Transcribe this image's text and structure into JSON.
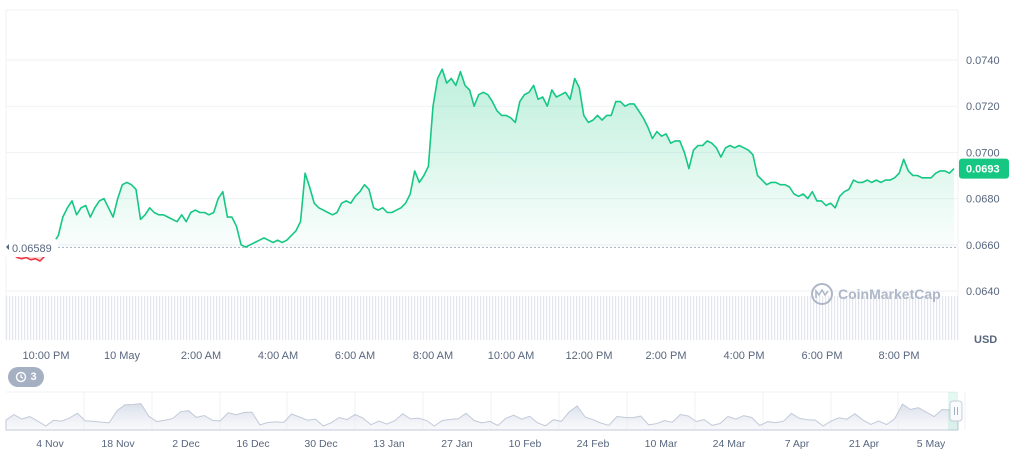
{
  "chart_data": {
    "type": "area",
    "currency_label": "USD",
    "watermark": "CoinMarketCap",
    "y_ticks": [
      "0.0740",
      "0.0720",
      "0.0700",
      "0.0680",
      "0.0660",
      "0.0640"
    ],
    "ylim": [
      0.063,
      0.0753
    ],
    "x_ticks": [
      "10:00 PM",
      "10 May",
      "2:00 AM",
      "4:00 AM",
      "6:00 AM",
      "8:00 AM",
      "10:00 AM",
      "12:00 PM",
      "2:00 PM",
      "4:00 PM",
      "6:00 PM",
      "8:00 PM"
    ],
    "open_price": 0.06589,
    "open_price_label": "0.06589",
    "current_price": 0.0693,
    "current_price_label": "0.0693",
    "colors": {
      "up": "#16c784",
      "down": "#ea3943",
      "badge": "#16c784",
      "neutral": "#a6b0c3"
    },
    "series": [
      {
        "values": [
          0.06589,
          0.0656,
          0.06545,
          0.0654,
          0.06545,
          0.06535,
          0.0654,
          0.0653,
          0.0655,
          0.0662,
          0.0661,
          0.0664,
          0.0672,
          0.0676,
          0.0679,
          0.0673,
          0.0676,
          0.0677,
          0.0672,
          0.0676,
          0.0679,
          0.068,
          0.0676,
          0.0672,
          0.068,
          0.0686,
          0.0687,
          0.0686,
          0.0684,
          0.0671,
          0.0673,
          0.0676,
          0.0674,
          0.0673,
          0.0673,
          0.0672,
          0.0671,
          0.067,
          0.0673,
          0.067,
          0.0674,
          0.0675,
          0.0674,
          0.0674,
          0.0673,
          0.0674,
          0.068,
          0.0683,
          0.0672,
          0.0672,
          0.0668,
          0.066,
          0.0659,
          0.066,
          0.0661,
          0.0662,
          0.0663,
          0.0662,
          0.0661,
          0.0662,
          0.0661,
          0.0662,
          0.0664,
          0.0666,
          0.067,
          0.0691,
          0.0685,
          0.0678,
          0.0676,
          0.0675,
          0.0674,
          0.0673,
          0.0674,
          0.0678,
          0.0679,
          0.0678,
          0.0681,
          0.0683,
          0.0686,
          0.0684,
          0.0676,
          0.0675,
          0.0676,
          0.0674,
          0.0674,
          0.0675,
          0.0676,
          0.0678,
          0.0682,
          0.0692,
          0.0687,
          0.069,
          0.0694,
          0.072,
          0.0732,
          0.0736,
          0.073,
          0.0732,
          0.0729,
          0.0735,
          0.0729,
          0.0727,
          0.072,
          0.0725,
          0.0726,
          0.0725,
          0.0722,
          0.0718,
          0.0716,
          0.0716,
          0.0715,
          0.0713,
          0.0722,
          0.0725,
          0.0726,
          0.0729,
          0.0723,
          0.0724,
          0.072,
          0.0727,
          0.0724,
          0.0725,
          0.0726,
          0.0723,
          0.0732,
          0.0728,
          0.0716,
          0.0713,
          0.0714,
          0.0716,
          0.0714,
          0.0716,
          0.0716,
          0.0722,
          0.0722,
          0.072,
          0.0721,
          0.0721,
          0.0718,
          0.0715,
          0.0711,
          0.0706,
          0.0709,
          0.0707,
          0.0708,
          0.0704,
          0.0705,
          0.0705,
          0.07,
          0.0693,
          0.0701,
          0.0703,
          0.0703,
          0.0705,
          0.0704,
          0.0702,
          0.0698,
          0.0702,
          0.0703,
          0.0702,
          0.0703,
          0.0702,
          0.0701,
          0.0699,
          0.069,
          0.0688,
          0.0686,
          0.0687,
          0.0687,
          0.0686,
          0.0686,
          0.0685,
          0.0682,
          0.0681,
          0.0682,
          0.068,
          0.0683,
          0.0679,
          0.0679,
          0.0677,
          0.0678,
          0.0676,
          0.0681,
          0.0683,
          0.0684,
          0.0688,
          0.0687,
          0.0687,
          0.0688,
          0.0687,
          0.0688,
          0.0687,
          0.0688,
          0.0688,
          0.0689,
          0.0691,
          0.0697,
          0.0692,
          0.069,
          0.069,
          0.0689,
          0.0689,
          0.0689,
          0.0691,
          0.0692,
          0.0692,
          0.0691,
          0.0693
        ]
      }
    ]
  },
  "navigator": {
    "history_count": "3",
    "labels": [
      "4 Nov",
      "18 Nov",
      "2 Dec",
      "16 Dec",
      "30 Dec",
      "13 Jan",
      "27 Jan",
      "10 Feb",
      "24 Feb",
      "10 Mar",
      "24 Mar",
      "7 Apr",
      "21 Apr",
      "5 May"
    ],
    "handle_icon": "drag-handle-icon",
    "history_icon": "history-clock-icon"
  }
}
